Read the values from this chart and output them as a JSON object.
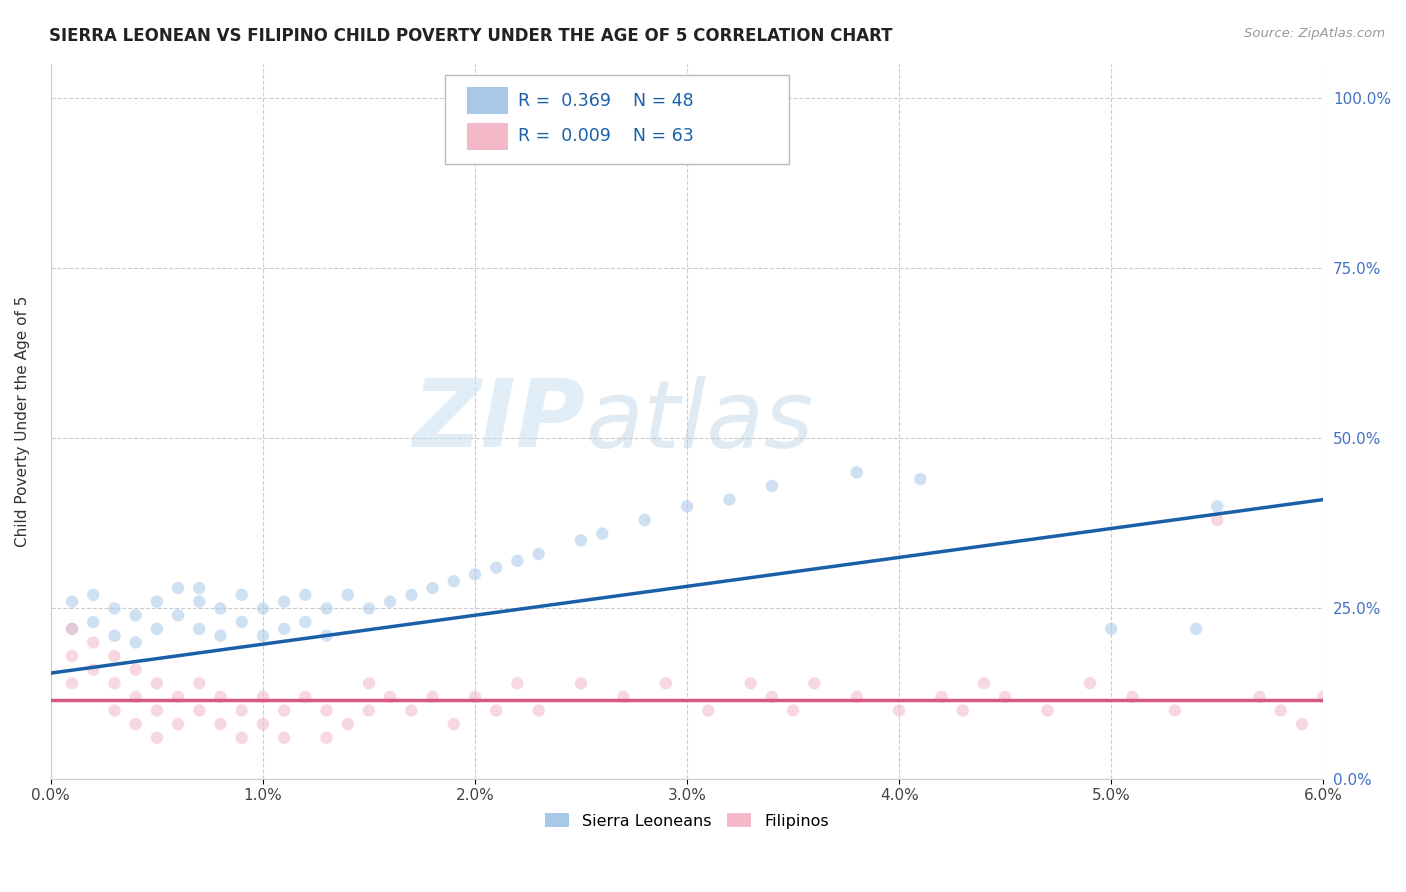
{
  "title": "SIERRA LEONEAN VS FILIPINO CHILD POVERTY UNDER THE AGE OF 5 CORRELATION CHART",
  "source": "Source: ZipAtlas.com",
  "ylabel": "Child Poverty Under the Age of 5",
  "xlim": [
    0.0,
    0.06
  ],
  "ylim": [
    0.0,
    1.05
  ],
  "ytick_vals": [
    0.0,
    0.25,
    0.5,
    0.75,
    1.0
  ],
  "ytick_labels": [
    "0.0%",
    "25.0%",
    "50.0%",
    "75.0%",
    "100.0%"
  ],
  "xtick_vals": [
    0.0,
    0.01,
    0.02,
    0.03,
    0.04,
    0.05,
    0.06
  ],
  "xtick_labels": [
    "0.0%",
    "1.0%",
    "2.0%",
    "3.0%",
    "4.0%",
    "5.0%",
    "6.0%"
  ],
  "color_sierra": "#a8c8e8",
  "color_filipino": "#f4b8c8",
  "trend_sierra_color": "#1a5fa8",
  "trend_filipino_color": "#d45880",
  "background_color": "#ffffff",
  "watermark": "ZIPatlas",
  "grid_color": "#cccccc",
  "scatter_size": 80,
  "scatter_alpha": 0.55,
  "trend_linewidth": 2.5,
  "sierra_x": [
    0.001,
    0.001,
    0.002,
    0.002,
    0.003,
    0.003,
    0.004,
    0.004,
    0.005,
    0.005,
    0.006,
    0.006,
    0.007,
    0.007,
    0.007,
    0.008,
    0.008,
    0.009,
    0.009,
    0.01,
    0.01,
    0.011,
    0.011,
    0.012,
    0.012,
    0.013,
    0.013,
    0.014,
    0.015,
    0.016,
    0.017,
    0.018,
    0.019,
    0.02,
    0.021,
    0.022,
    0.023,
    0.025,
    0.026,
    0.028,
    0.03,
    0.032,
    0.034,
    0.038,
    0.041,
    0.05,
    0.054,
    0.055
  ],
  "sierra_y": [
    0.26,
    0.22,
    0.27,
    0.23,
    0.25,
    0.21,
    0.24,
    0.2,
    0.26,
    0.22,
    0.28,
    0.24,
    0.26,
    0.22,
    0.28,
    0.25,
    0.21,
    0.27,
    0.23,
    0.25,
    0.21,
    0.26,
    0.22,
    0.27,
    0.23,
    0.25,
    0.21,
    0.27,
    0.25,
    0.26,
    0.27,
    0.28,
    0.29,
    0.3,
    0.31,
    0.32,
    0.33,
    0.35,
    0.36,
    0.38,
    0.4,
    0.41,
    0.43,
    0.45,
    0.44,
    0.22,
    0.22,
    0.4
  ],
  "filipino_x": [
    0.001,
    0.001,
    0.001,
    0.002,
    0.002,
    0.003,
    0.003,
    0.003,
    0.004,
    0.004,
    0.004,
    0.005,
    0.005,
    0.005,
    0.006,
    0.006,
    0.007,
    0.007,
    0.008,
    0.008,
    0.009,
    0.009,
    0.01,
    0.01,
    0.011,
    0.011,
    0.012,
    0.013,
    0.013,
    0.014,
    0.015,
    0.015,
    0.016,
    0.017,
    0.018,
    0.019,
    0.02,
    0.021,
    0.022,
    0.023,
    0.025,
    0.027,
    0.029,
    0.031,
    0.033,
    0.034,
    0.035,
    0.036,
    0.038,
    0.04,
    0.042,
    0.043,
    0.044,
    0.045,
    0.047,
    0.049,
    0.051,
    0.053,
    0.055,
    0.057,
    0.058,
    0.059,
    0.06
  ],
  "filipino_y": [
    0.22,
    0.18,
    0.14,
    0.2,
    0.16,
    0.18,
    0.14,
    0.1,
    0.16,
    0.12,
    0.08,
    0.14,
    0.1,
    0.06,
    0.12,
    0.08,
    0.14,
    0.1,
    0.12,
    0.08,
    0.1,
    0.06,
    0.12,
    0.08,
    0.1,
    0.06,
    0.12,
    0.1,
    0.06,
    0.08,
    0.14,
    0.1,
    0.12,
    0.1,
    0.12,
    0.08,
    0.12,
    0.1,
    0.14,
    0.1,
    0.14,
    0.12,
    0.14,
    0.1,
    0.14,
    0.12,
    0.1,
    0.14,
    0.12,
    0.1,
    0.12,
    0.1,
    0.14,
    0.12,
    0.1,
    0.14,
    0.12,
    0.1,
    0.38,
    0.12,
    0.1,
    0.08,
    0.12
  ],
  "trend_sierra_x0": 0.0,
  "trend_sierra_y0": 0.155,
  "trend_sierra_x1": 0.06,
  "trend_sierra_y1": 0.41,
  "trend_filipino_y": 0.115
}
